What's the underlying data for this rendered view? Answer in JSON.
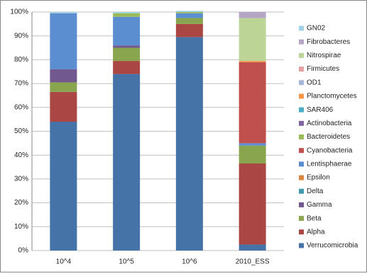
{
  "chart_data": {
    "type": "stacked_bar",
    "categories": [
      "10^4",
      "10^5",
      "10^6",
      "2010_ESS"
    ],
    "ylim": [
      0,
      100
    ],
    "yticks": [
      {
        "value": 0,
        "label": "0%"
      },
      {
        "value": 10,
        "label": "10%"
      },
      {
        "value": 20,
        "label": "20%"
      },
      {
        "value": 30,
        "label": "30%"
      },
      {
        "value": 40,
        "label": "40%"
      },
      {
        "value": 50,
        "label": "50%"
      },
      {
        "value": 60,
        "label": "60%"
      },
      {
        "value": 70,
        "label": "70%"
      },
      {
        "value": 80,
        "label": "80%"
      },
      {
        "value": 90,
        "label": "90%"
      },
      {
        "value": 100,
        "label": "100%"
      }
    ],
    "grid": true,
    "legend": "right",
    "series": [
      {
        "name": "Verrucomicrobia",
        "color": "#4572a7",
        "values": [
          54,
          74,
          89.5,
          2.5
        ]
      },
      {
        "name": "Alpha",
        "color": "#aa4643",
        "values": [
          12.5,
          5.5,
          5.5,
          34
        ]
      },
      {
        "name": "Beta",
        "color": "#89a54e",
        "values": [
          4,
          5.5,
          2.5,
          7.5
        ]
      },
      {
        "name": "Gamma",
        "color": "#71588f",
        "values": [
          5.5,
          1,
          0,
          0
        ]
      },
      {
        "name": "Delta",
        "color": "#4198af",
        "values": [
          0,
          0,
          0,
          0
        ]
      },
      {
        "name": "Epsilon",
        "color": "#db843d",
        "values": [
          0,
          0,
          0,
          0
        ]
      },
      {
        "name": "Lentisphaerae",
        "color": "#5a8ed0",
        "values": [
          23.5,
          12,
          2,
          1
        ]
      },
      {
        "name": "Cyanobacteria",
        "color": "#c0504d",
        "values": [
          0,
          0,
          0,
          34
        ]
      },
      {
        "name": "Bacteroidetes",
        "color": "#9bbb59",
        "values": [
          0,
          1.5,
          0.5,
          0
        ]
      },
      {
        "name": "Actinobacteria",
        "color": "#8064a2",
        "values": [
          0,
          0,
          0,
          0
        ]
      },
      {
        "name": "SAR406",
        "color": "#4bacc6",
        "values": [
          0,
          0,
          0,
          0
        ]
      },
      {
        "name": "Planctomycetes",
        "color": "#f79646",
        "values": [
          0,
          0,
          0,
          0.5
        ]
      },
      {
        "name": "OD1",
        "color": "#a5b6d8",
        "values": [
          0,
          0,
          0,
          0
        ]
      },
      {
        "name": "Firmicutes",
        "color": "#e5a19f",
        "values": [
          0,
          0,
          0,
          0
        ]
      },
      {
        "name": "Nitrospirae",
        "color": "#bcd597",
        "values": [
          0,
          0,
          0,
          18
        ]
      },
      {
        "name": "Fibrobacteres",
        "color": "#b5a6c8",
        "values": [
          0,
          0,
          0,
          2.5
        ]
      },
      {
        "name": "GN02",
        "color": "#9fd4e6",
        "values": [
          0.5,
          0.5,
          0.5,
          0
        ]
      }
    ]
  }
}
